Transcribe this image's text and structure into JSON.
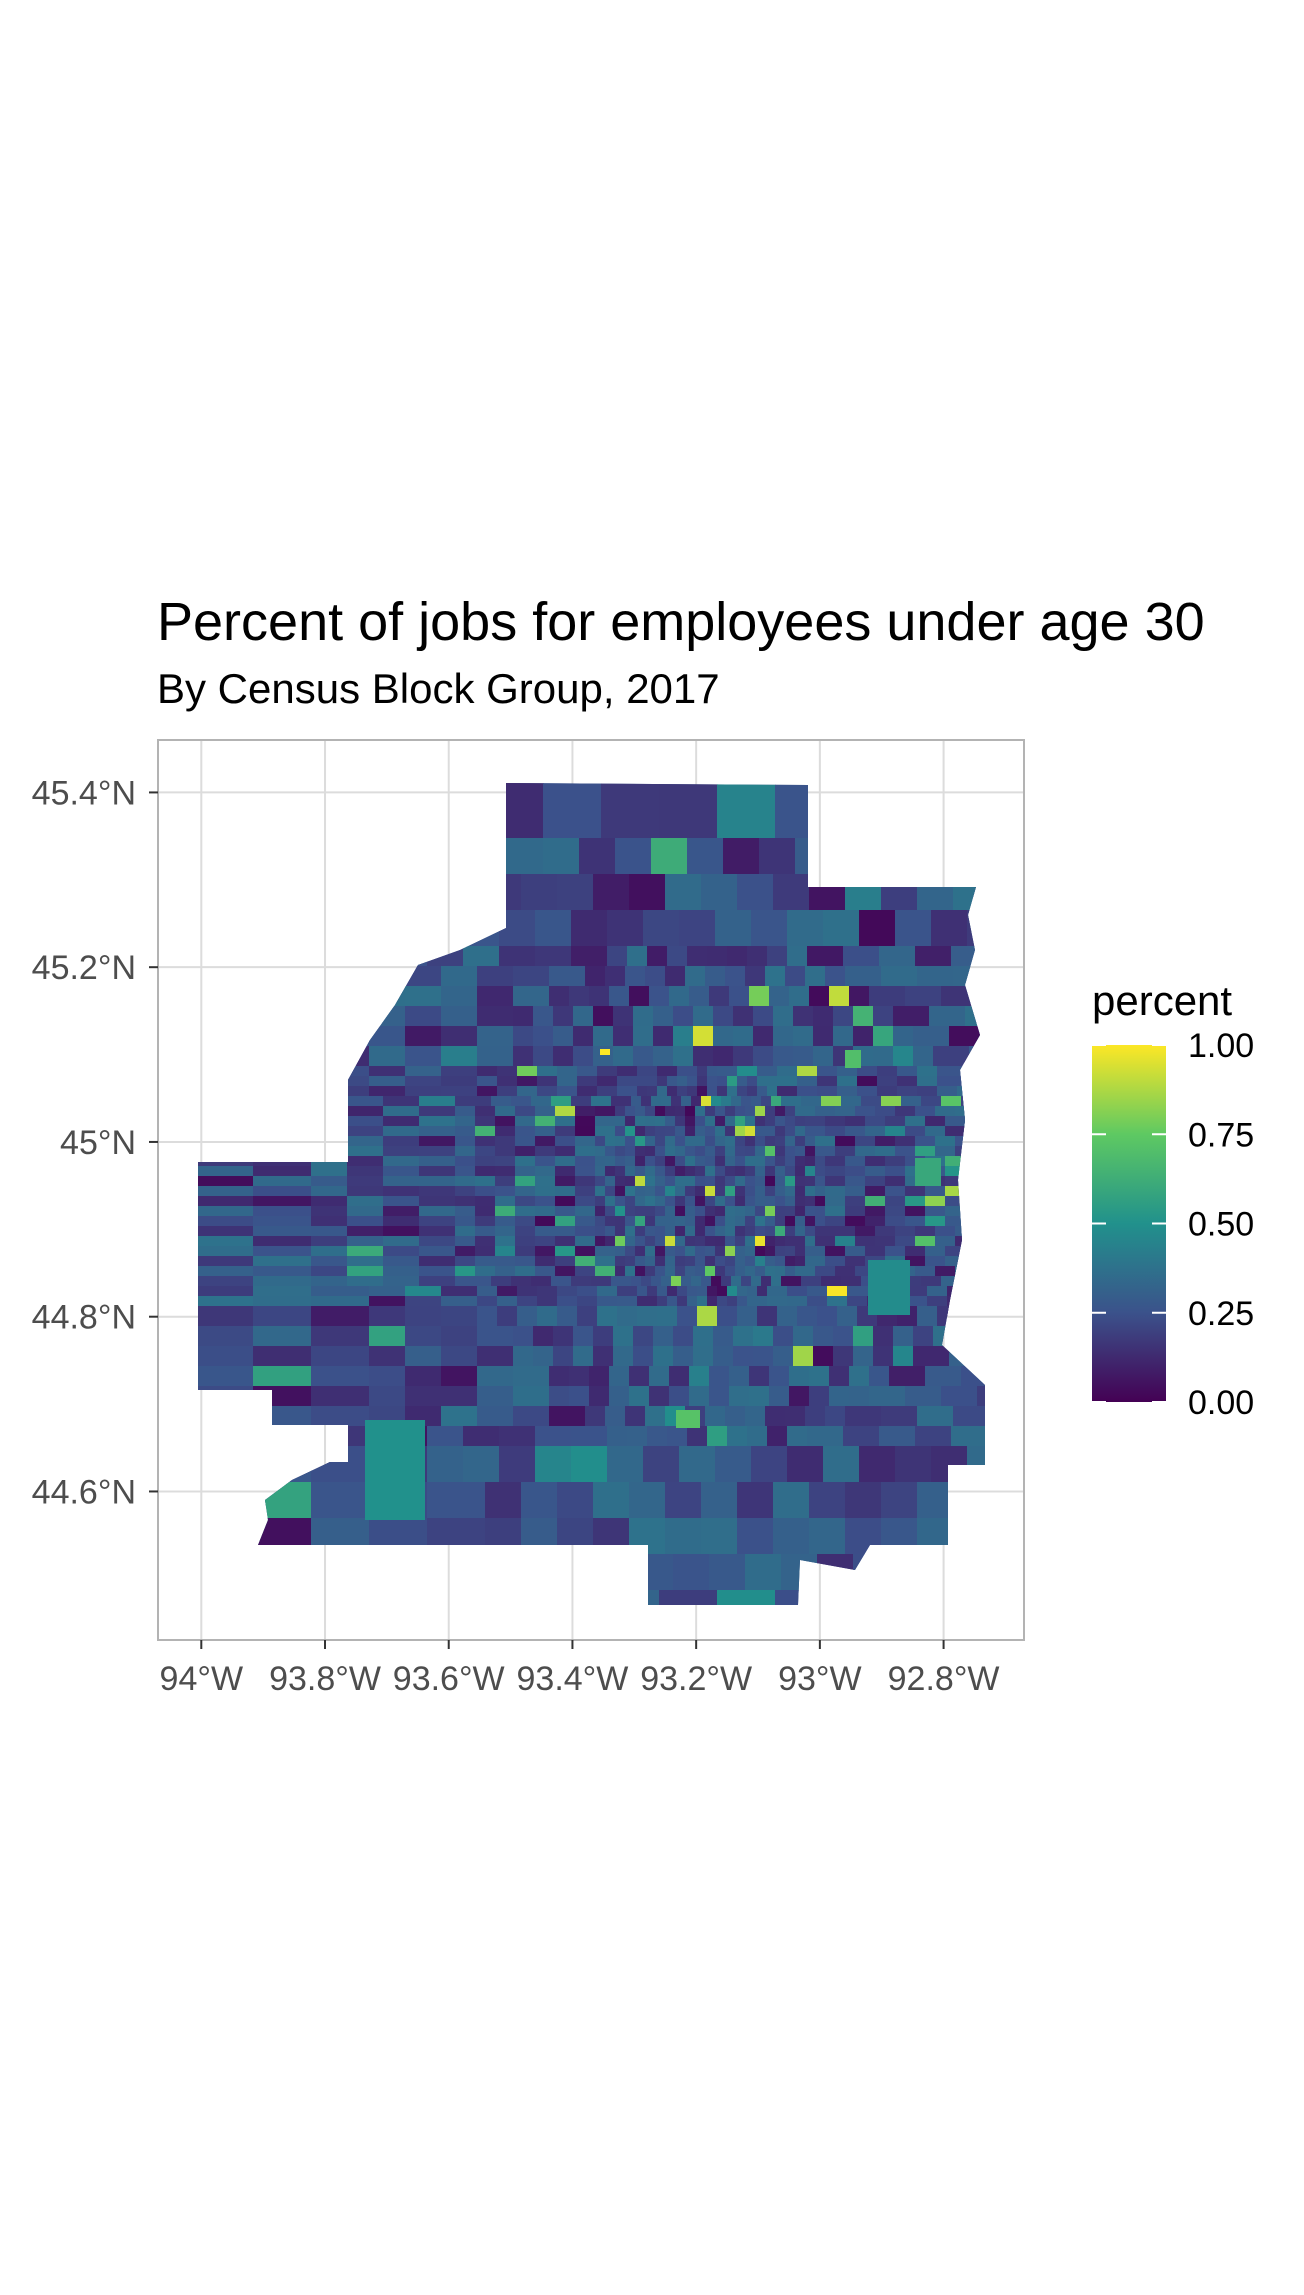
{
  "title": "Percent of jobs for employees under age 30",
  "subtitle": "By Census Block Group, 2017",
  "x_axis": {
    "ticks": [
      {
        "value": -94.0,
        "label": "94°W"
      },
      {
        "value": -93.8,
        "label": "93.8°W"
      },
      {
        "value": -93.6,
        "label": "93.6°W"
      },
      {
        "value": -93.4,
        "label": "93.4°W"
      },
      {
        "value": -93.2,
        "label": "93.2°W"
      },
      {
        "value": -93.0,
        "label": "93°W"
      },
      {
        "value": -92.8,
        "label": "92.8°W"
      }
    ],
    "range": [
      -94.07,
      -92.67
    ]
  },
  "y_axis": {
    "ticks": [
      {
        "value": 45.4,
        "label": "45.4°N"
      },
      {
        "value": 45.2,
        "label": "45.2°N"
      },
      {
        "value": 45.0,
        "label": "45°N"
      },
      {
        "value": 44.8,
        "label": "44.8°N"
      },
      {
        "value": 44.6,
        "label": "44.6°N"
      }
    ],
    "range": [
      44.43,
      45.46
    ]
  },
  "legend": {
    "title": "percent",
    "placement": "right",
    "labels": [
      "1.00",
      "0.75",
      "0.50",
      "0.25",
      "0.00"
    ],
    "scale": "viridis",
    "range": [
      0,
      1
    ],
    "gradient_colors": [
      "#440154",
      "#3b528b",
      "#21918c",
      "#5ec962",
      "#fde725"
    ]
  },
  "map_style": {
    "background": "#ffffff",
    "grid": true,
    "grid_color": "#dcdcdc",
    "border_color": "#b3b3b3",
    "base_fill": "#2f4f88"
  },
  "chart_data": {
    "type": "choropleth",
    "region": "Twin Cities metro area, Minnesota",
    "unit": "Census Block Group",
    "variable": "percent",
    "value_range": [
      0,
      1
    ],
    "typical_value": 0.25,
    "notes_from_image": "Most block groups fall between about 0.15 and 0.35; a handful of small central block groups reach close to 1.00."
  }
}
